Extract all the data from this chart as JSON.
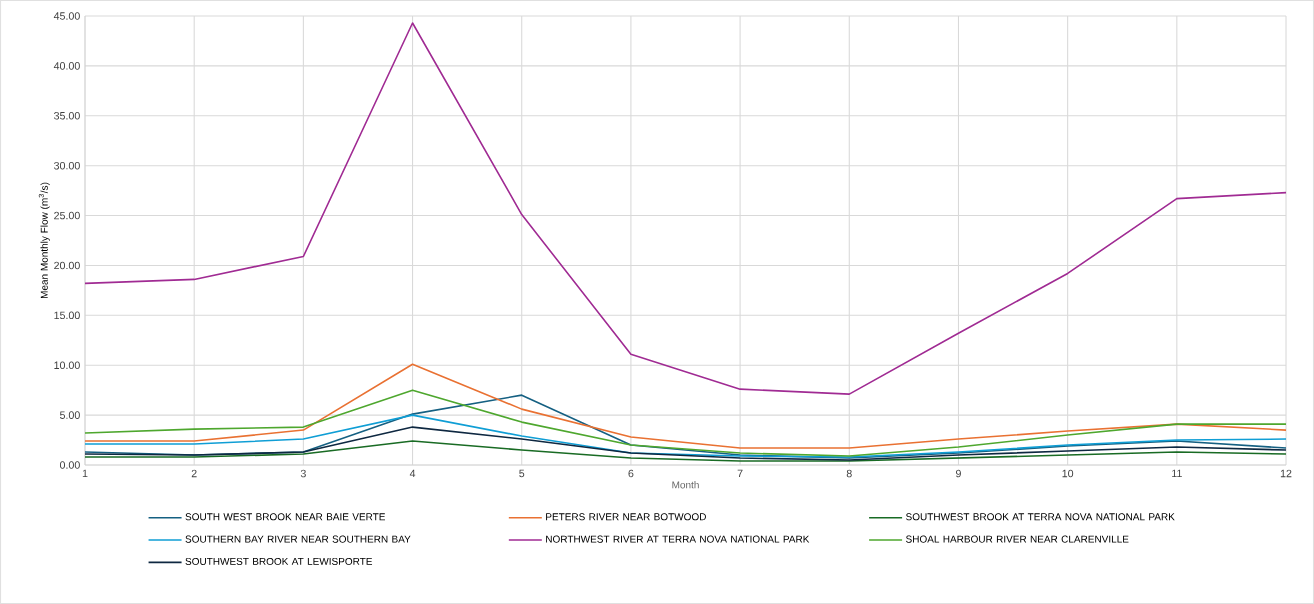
{
  "chart_data": {
    "type": "line",
    "xlabel": "Month",
    "ylabel": "Mean Monthly Flow (m$^{3}$/s)",
    "x": [
      1,
      2,
      3,
      4,
      5,
      6,
      7,
      8,
      9,
      10,
      11,
      12
    ],
    "xlim": [
      1,
      12
    ],
    "xticks": [
      1,
      2,
      3,
      4,
      5,
      6,
      7,
      8,
      9,
      10,
      11,
      12
    ],
    "ylim": [
      0,
      45
    ],
    "yticks": [
      {
        "value": 0,
        "label": "0.00"
      },
      {
        "value": 5,
        "label": "5.00"
      },
      {
        "value": 10,
        "label": "10.00"
      },
      {
        "value": 15,
        "label": "15.00"
      },
      {
        "value": 20,
        "label": "20.00"
      },
      {
        "value": 25,
        "label": "25.00"
      },
      {
        "value": 30,
        "label": "30.00"
      },
      {
        "value": 35,
        "label": "35.00"
      },
      {
        "value": 40,
        "label": "40.00"
      },
      {
        "value": 45,
        "label": "45.00"
      }
    ],
    "grid": true,
    "legend": "bottom",
    "series": [
      {
        "name": "SOUTH WEST BROOK NEAR BAIE VERTE",
        "color": "#156082",
        "values": [
          1.3,
          1.0,
          1.3,
          5.1,
          7.0,
          2.0,
          1.0,
          0.7,
          1.2,
          1.9,
          2.4,
          1.7
        ]
      },
      {
        "name": "PETERS RIVER NEAR BOTWOOD",
        "color": "#e97132",
        "values": [
          2.4,
          2.4,
          3.5,
          10.1,
          5.6,
          2.8,
          1.7,
          1.7,
          2.6,
          3.4,
          4.1,
          3.5
        ]
      },
      {
        "name": "SOUTHWEST BROOK AT TERRA NOVA NATIONAL PARK",
        "color": "#196b24",
        "values": [
          0.8,
          0.8,
          1.1,
          2.4,
          1.5,
          0.7,
          0.4,
          0.4,
          0.7,
          1.0,
          1.3,
          1.1
        ]
      },
      {
        "name": "SOUTHERN BAY RIVER NEAR SOUTHERN BAY",
        "color": "#0f9ed5",
        "values": [
          2.1,
          2.1,
          2.6,
          5.0,
          2.9,
          1.2,
          0.9,
          0.8,
          1.3,
          2.0,
          2.5,
          2.6
        ]
      },
      {
        "name": "NORTHWEST RIVER AT TERRA NOVA NATIONAL PARK",
        "color": "#a02b93",
        "values": [
          18.2,
          18.6,
          20.9,
          44.3,
          25.1,
          11.1,
          7.6,
          7.1,
          13.2,
          19.2,
          26.7,
          27.3
        ]
      },
      {
        "name": "SHOAL HARBOUR RIVER NEAR CLARENVILLE",
        "color": "#4ea72e",
        "values": [
          3.2,
          3.6,
          3.8,
          7.5,
          4.3,
          2.0,
          1.2,
          0.9,
          1.8,
          3.0,
          4.1,
          4.1
        ]
      },
      {
        "name": "SOUTHWEST BROOK AT LEWISPORTE",
        "color": "#0e2841",
        "values": [
          1.1,
          1.0,
          1.3,
          3.8,
          2.6,
          1.2,
          0.7,
          0.5,
          1.0,
          1.4,
          1.8,
          1.5
        ]
      }
    ]
  }
}
